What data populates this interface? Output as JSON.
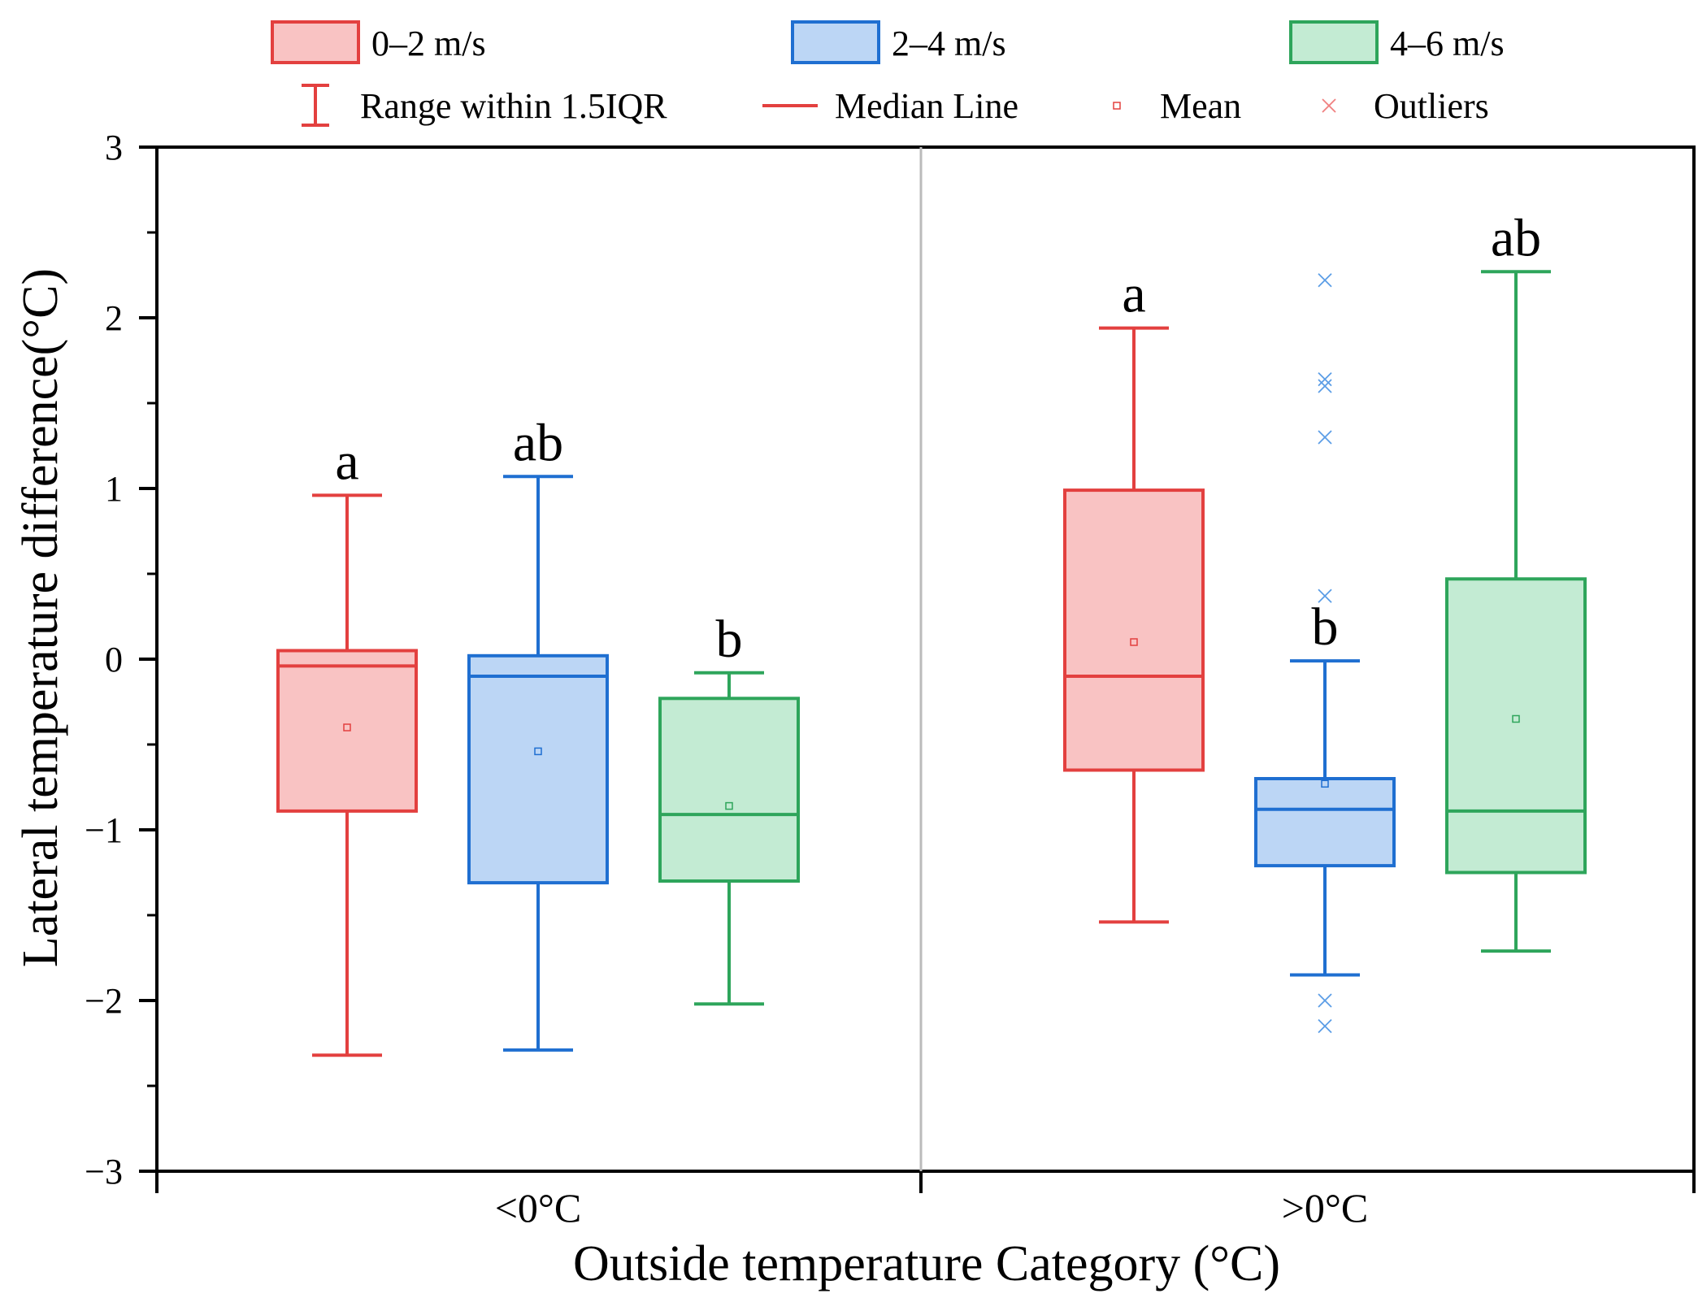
{
  "chart_data": {
    "type": "box",
    "ylabel": "Lateral temperature difference(°C)",
    "xlabel": "Outside temperature Category (°C)",
    "ylim": [
      -3,
      3
    ],
    "yticks": [
      {
        "value": 3,
        "label": "3"
      },
      {
        "value": 2,
        "label": "2"
      },
      {
        "value": 1,
        "label": "1"
      },
      {
        "value": 0,
        "label": "0"
      },
      {
        "value": -1,
        "label": "−1"
      },
      {
        "value": -2,
        "label": "−2"
      },
      {
        "value": -3,
        "label": "−3"
      }
    ],
    "categories": [
      "<0°C",
      ">0°C"
    ],
    "legend": {
      "series": [
        "0–2 m/s",
        "2–4 m/s",
        "4–6 m/s"
      ],
      "range": "Range within 1.5IQR",
      "median": "Median Line",
      "mean": "Mean",
      "outliers": "Outliers"
    },
    "colors": {
      "red": "#e3403f",
      "red_fill": "#f9c3c3",
      "blue": "#1f6fd1",
      "blue_fill": "#bcd6f5",
      "green": "#2ea55b",
      "green_fill": "#c3ebd3",
      "divider": "#bbbbbb"
    },
    "boxes": [
      {
        "category": 0,
        "series": 0,
        "lower_whisker": -2.32,
        "q1": -0.89,
        "median": -0.04,
        "q3": 0.05,
        "upper_whisker": 0.96,
        "mean": -0.4,
        "letter": "a",
        "outliers": []
      },
      {
        "category": 0,
        "series": 1,
        "lower_whisker": -2.29,
        "q1": -1.31,
        "median": -0.1,
        "q3": 0.02,
        "upper_whisker": 1.07,
        "mean": -0.54,
        "letter": "ab",
        "outliers": []
      },
      {
        "category": 0,
        "series": 2,
        "lower_whisker": -2.02,
        "q1": -1.3,
        "median": -0.91,
        "q3": -0.23,
        "upper_whisker": -0.08,
        "mean": -0.86,
        "letter": "b",
        "outliers": []
      },
      {
        "category": 1,
        "series": 0,
        "lower_whisker": -1.54,
        "q1": -0.65,
        "median": -0.1,
        "q3": 0.99,
        "upper_whisker": 1.94,
        "mean": 0.1,
        "letter": "a",
        "outliers": []
      },
      {
        "category": 1,
        "series": 1,
        "lower_whisker": -1.85,
        "q1": -1.21,
        "median": -0.88,
        "q3": -0.7,
        "upper_whisker": -0.01,
        "mean": -0.73,
        "letter": "b",
        "outliers": [
          2.22,
          1.64,
          1.6,
          1.3,
          0.37,
          -2.0,
          -2.15
        ]
      },
      {
        "category": 1,
        "series": 2,
        "lower_whisker": -1.71,
        "q1": -1.25,
        "median": -0.89,
        "q3": 0.47,
        "upper_whisker": 2.27,
        "mean": -0.35,
        "letter": "ab",
        "outliers": []
      }
    ]
  }
}
